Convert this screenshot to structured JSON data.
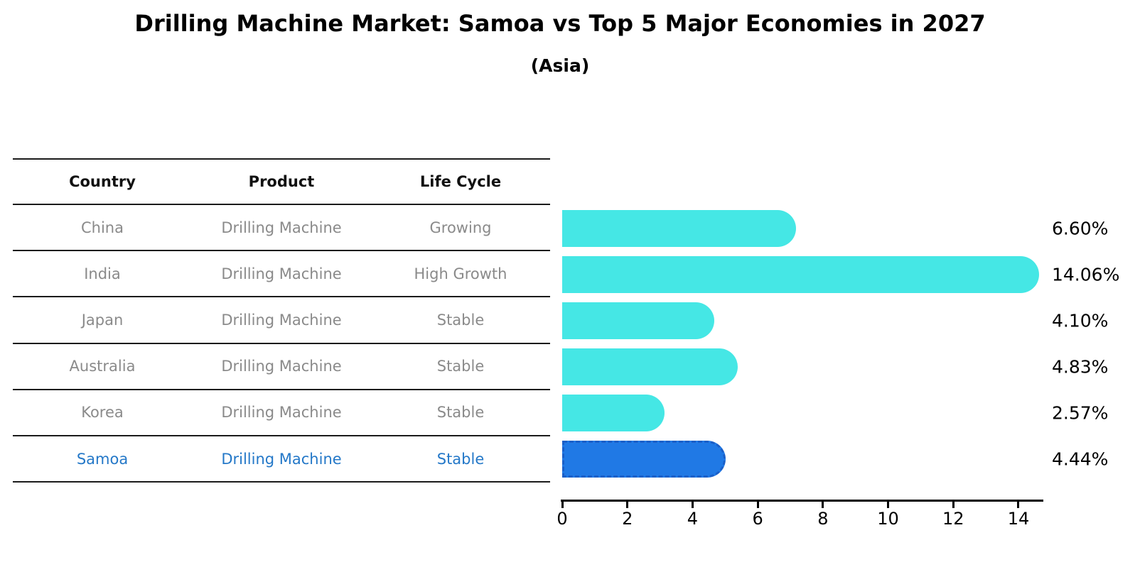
{
  "title": "Drilling Machine Market: Samoa vs Top 5 Major Economies in 2027",
  "subtitle": "(Asia)",
  "table": {
    "headers": [
      "Country",
      "Product",
      "Life Cycle"
    ],
    "rows": [
      {
        "country": "China",
        "product": "Drilling Machine",
        "life_cycle": "Growing"
      },
      {
        "country": "India",
        "product": "Drilling Machine",
        "life_cycle": "High Growth"
      },
      {
        "country": "Japan",
        "product": "Drilling Machine",
        "life_cycle": "Stable"
      },
      {
        "country": "Australia",
        "product": "Drilling Machine",
        "life_cycle": "Stable"
      },
      {
        "country": "Korea",
        "product": "Drilling Machine",
        "life_cycle": "Stable"
      },
      {
        "country": "Samoa",
        "product": "Drilling Machine",
        "life_cycle": "Stable"
      }
    ]
  },
  "chart_data": {
    "type": "bar",
    "orientation": "horizontal",
    "title": "Drilling Machine Market: Samoa vs Top 5 Major Economies in 2027",
    "subtitle": "(Asia)",
    "categories": [
      "China",
      "India",
      "Japan",
      "Australia",
      "Korea",
      "Samoa"
    ],
    "values": [
      6.6,
      14.06,
      4.1,
      4.83,
      2.57,
      4.44
    ],
    "value_labels": [
      "6.60%",
      "14.06%",
      "4.10%",
      "4.83%",
      "2.57%",
      "4.44%"
    ],
    "x_ticks": [
      0,
      2,
      4,
      6,
      8,
      10,
      12,
      14
    ],
    "x_tick_labels": [
      "0",
      "2",
      "4",
      "6",
      "8",
      "10",
      "12",
      "14"
    ],
    "xlim": [
      0,
      14.76
    ],
    "grid": false,
    "legend": false,
    "highlight_index": 5,
    "highlight_category": "Samoa",
    "colors": {
      "bar": "#45E7E5",
      "highlight_bar": "#2079E5",
      "highlight_border": "#1A5FC8",
      "highlight_text": "#2478C8",
      "table_text": "#8a8a8a",
      "table_header": "#111111",
      "axis": "#000000",
      "value_label": "#000000"
    }
  }
}
